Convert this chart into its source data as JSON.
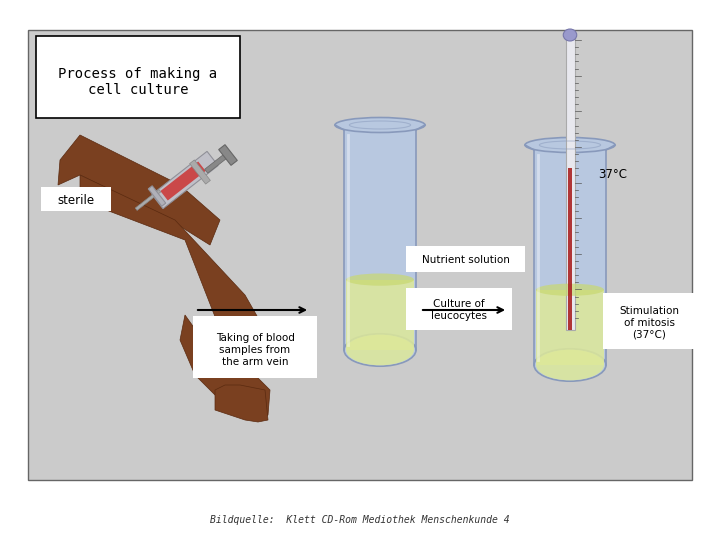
{
  "bg_color": "#cbcbcb",
  "outer_bg_color": "#ffffff",
  "title_box_text": "Process of making a\ncell culture",
  "title_box_color": "#ffffff",
  "title_box_edge": "#000000",
  "sterile_label": "sterile",
  "arrow1_label": "Taking of blood\nsamples from\nthe arm vein",
  "nutrient_label": "Nutrient solution",
  "culture_label": "Culture of\nleucocytes",
  "stimulation_label": "Stimulation\nof mitosis\n(37°C)",
  "temp_label": "37°C",
  "citation": "Bildquelle:  Klett CD-Rom Mediothek Menschenkunde 4",
  "tube_color": "#b8c8e0",
  "tube_edge": "#8899bb",
  "tube_liquid_color": "#dde899",
  "font_size_title": 10,
  "font_size_labels": 7.5,
  "font_size_citation": 7
}
